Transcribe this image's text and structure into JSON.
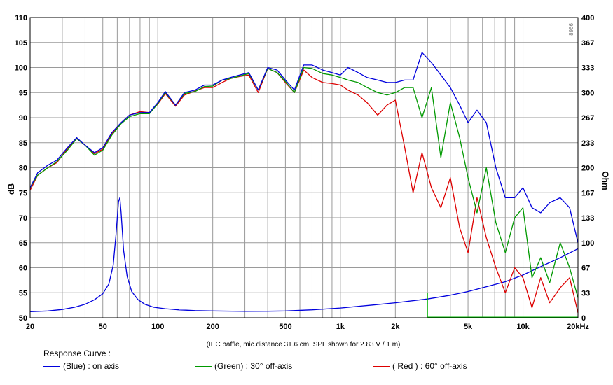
{
  "chart_data": {
    "type": "line",
    "xscale": "log",
    "xlim": [
      20,
      20000
    ],
    "ylim": [
      50,
      110
    ],
    "y2lim": [
      0,
      400
    ],
    "ylabel": "dB",
    "y2label": "Ohm",
    "xticks": [
      {
        "v": 20,
        "label": "20"
      },
      {
        "v": 50,
        "label": "50"
      },
      {
        "v": 100,
        "label": "100"
      },
      {
        "v": 200,
        "label": "200"
      },
      {
        "v": 500,
        "label": "500"
      },
      {
        "v": 1000,
        "label": "1k"
      },
      {
        "v": 2000,
        "label": "2k"
      },
      {
        "v": 5000,
        "label": "5k"
      },
      {
        "v": 10000,
        "label": "10k"
      },
      {
        "v": 20000,
        "label": "20kHz"
      }
    ],
    "yticks": [
      "50",
      "55",
      "60",
      "65",
      "70",
      "75",
      "80",
      "85",
      "90",
      "95",
      "100",
      "105",
      "110"
    ],
    "y2ticks": [
      "0",
      "33",
      "67",
      "100",
      "133",
      "167",
      "200",
      "233",
      "267",
      "300",
      "333",
      "367",
      "400"
    ],
    "note": "(IEC baffle, mic.distance 31.6 cm, SPL shown for 2.83 V / 1 m)",
    "corner_code": "8966",
    "series": [
      {
        "name": "(Blue)  : on axis",
        "color": "#0000dd",
        "x": [
          20,
          22,
          25,
          28,
          32,
          36,
          40,
          45,
          50,
          56,
          63,
          70,
          80,
          90,
          100,
          110,
          125,
          140,
          160,
          180,
          200,
          225,
          250,
          280,
          315,
          355,
          400,
          450,
          500,
          560,
          630,
          700,
          800,
          900,
          1000,
          1100,
          1250,
          1400,
          1600,
          1800,
          2000,
          2250,
          2500,
          2800,
          3150,
          3550,
          4000,
          4500,
          5000,
          5600,
          6300,
          7100,
          8000,
          9000,
          10000,
          11200,
          12500,
          14000,
          16000,
          18000,
          20000
        ],
        "y": [
          76,
          79,
          80.5,
          81.5,
          84,
          86,
          84.5,
          83,
          84,
          87,
          89,
          90.5,
          91,
          91,
          93,
          95.2,
          92.5,
          95,
          95.5,
          96.5,
          96.5,
          97.5,
          98,
          98.5,
          99,
          95.5,
          100,
          99.5,
          97.5,
          95.5,
          100.5,
          100.5,
          99.5,
          99,
          98.5,
          100,
          99,
          98,
          97.5,
          97,
          97,
          97.5,
          97.5,
          103,
          101,
          98.5,
          96,
          92.5,
          89,
          91.5,
          89,
          80,
          74,
          74,
          76,
          72,
          71,
          73,
          74,
          72,
          65
        ]
      },
      {
        "name": "(Green) : 30° off-axis",
        "color": "#009900",
        "x": [
          20,
          22,
          25,
          28,
          32,
          36,
          40,
          45,
          50,
          56,
          63,
          70,
          80,
          90,
          100,
          110,
          125,
          140,
          160,
          180,
          200,
          225,
          250,
          280,
          315,
          355,
          400,
          450,
          500,
          560,
          630,
          700,
          800,
          900,
          1000,
          1100,
          1250,
          1400,
          1600,
          1800,
          2000,
          2250,
          2500,
          2800,
          3150,
          3550,
          4000,
          4500,
          5000,
          5600,
          6300,
          7100,
          8000,
          9000,
          10000,
          11200,
          12500,
          14000,
          16000,
          18000,
          20000
        ],
        "y": [
          76,
          78.5,
          80,
          81.2,
          83.5,
          85.8,
          84.5,
          82.5,
          83.5,
          86.5,
          88.8,
          90.2,
          90.8,
          90.8,
          92.8,
          95,
          92.5,
          94.8,
          95.2,
          96.2,
          96.3,
          97.5,
          97.8,
          98.3,
          98.8,
          95.5,
          99.8,
          99,
          97.2,
          95,
          100,
          99.8,
          98.8,
          98.5,
          98,
          97.5,
          97,
          96,
          95,
          94.5,
          95,
          96,
          96,
          90,
          96,
          82,
          93,
          86,
          78,
          71,
          80,
          69,
          63,
          70,
          72,
          58,
          62,
          57,
          65,
          60,
          54
        ]
      },
      {
        "name": "( Red ) : 60° off-axis",
        "color": "#dd0000",
        "x": [
          20,
          22,
          25,
          28,
          32,
          36,
          40,
          45,
          50,
          56,
          63,
          70,
          80,
          90,
          100,
          110,
          125,
          140,
          160,
          180,
          200,
          225,
          250,
          280,
          315,
          355,
          400,
          450,
          500,
          560,
          630,
          700,
          800,
          900,
          1000,
          1100,
          1250,
          1400,
          1600,
          1800,
          2000,
          2250,
          2500,
          2800,
          3150,
          3550,
          4000,
          4500,
          5000,
          5600,
          6300,
          7100,
          8000,
          9000,
          10000,
          11200,
          12500,
          14000,
          16000,
          18000,
          20000
        ],
        "y": [
          75.5,
          78.5,
          80,
          81,
          83.8,
          85.8,
          84.5,
          82.8,
          83.7,
          86.8,
          89,
          90.5,
          91.2,
          91,
          92.7,
          94.8,
          92.3,
          94.5,
          95.3,
          96,
          96,
          97,
          97.8,
          98.2,
          98.5,
          95,
          99.8,
          99,
          97,
          95,
          99.5,
          98,
          97,
          96.8,
          96.5,
          95.5,
          94.5,
          93,
          90.5,
          92.5,
          93.5,
          84,
          75,
          83,
          76,
          72,
          78,
          68,
          63,
          74,
          66,
          60,
          55,
          60,
          58,
          52,
          58,
          53,
          56,
          58,
          51
        ]
      },
      {
        "name": "impedance",
        "color": "#0000dd",
        "axis": "ohm",
        "x": [
          20,
          25,
          30,
          35,
          40,
          45,
          50,
          54,
          57,
          59,
          61,
          62,
          63,
          65,
          68,
          72,
          78,
          85,
          95,
          110,
          130,
          160,
          200,
          300,
          400,
          500,
          700,
          1000,
          1500,
          2000,
          3000,
          4000,
          5000,
          6000,
          8000,
          10000,
          13000,
          16000,
          20000
        ],
        "y": [
          8,
          9,
          11,
          14,
          18,
          24,
          32,
          45,
          70,
          110,
          155,
          160,
          140,
          90,
          55,
          35,
          24,
          18,
          14,
          12,
          10.5,
          9.5,
          9,
          8.5,
          8.7,
          9,
          10.5,
          13,
          17,
          20,
          25,
          30,
          35,
          40,
          48,
          57,
          70,
          80,
          92
        ]
      }
    ]
  }
}
